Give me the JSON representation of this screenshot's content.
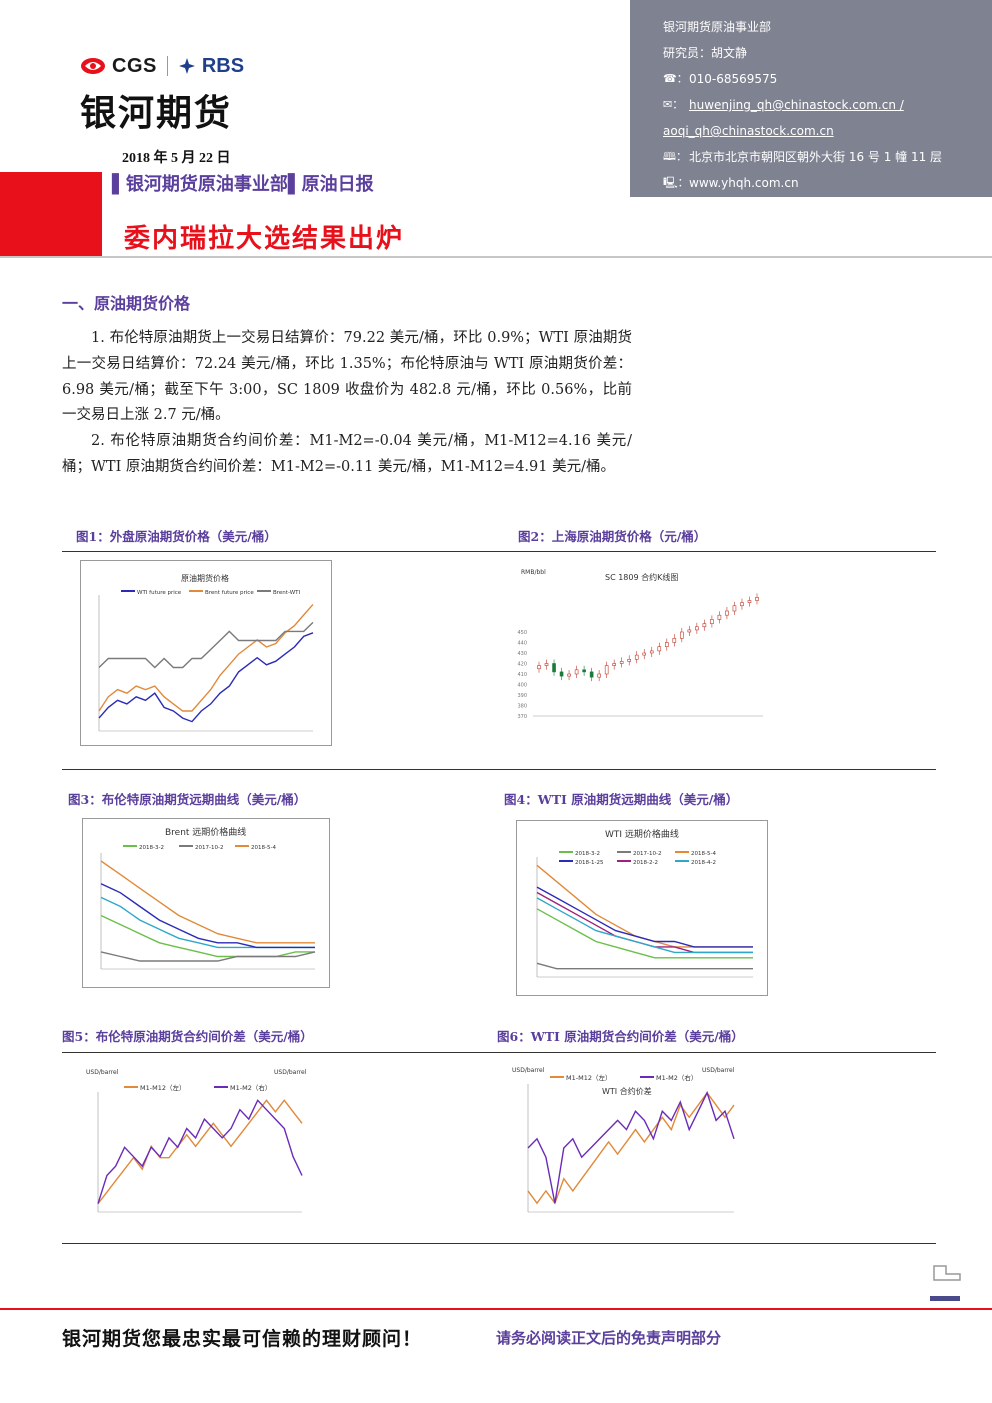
{
  "header": {
    "logo_left": "CGS",
    "logo_right": "RBS",
    "brand": "银河期货",
    "date": "2018 年 5 月 22 日",
    "department": "▌银河期货原油事业部▌原油日报",
    "headline": "委内瑞拉大选结果出炉"
  },
  "contact": {
    "dept": "银河期货原油事业部",
    "researcher": "研究员：胡文静",
    "phone_icon": "☎：",
    "phone": "010-68569575",
    "email_icon": "✉：",
    "email1": "huwenjing_qh@chinastock.com.cn /",
    "email2": "aoqi_qh@chinastock.com.cn",
    "address_icon": "🕮：",
    "address": "北京市北京市朝阳区朝外大街 16 号 1 幢 11 层",
    "web_icon": "🖳：",
    "web": "www.yhqh.com.cn"
  },
  "section": {
    "title": "一、原油期货价格",
    "para1": "1. 布伦特原油期货上一交易日结算价：79.22 美元/桶，环比 0.9%；WTI 原油期货上一交易日结算价：72.24 美元/桶，环比 1.35%；布伦特原油与 WTI 原油期货价差：6.98 美元/桶；截至下午 3:00，SC 1809 收盘价为 482.8 元/桶，环比 0.56%，比前一交易日上涨 2.7 元/桶。",
    "para2": "2. 布伦特原油期货合约间价差：M1-M2=-0.04 美元/桶，M1-M12=4.16 美元/桶；WTI 原油期货合约间价差：M1-M2=-0.11 美元/桶，M1-M12=4.91 美元/桶。"
  },
  "figures": {
    "fig1": "图1：外盘原油期货价格（美元/桶）",
    "fig2": "图2：上海原油期货价格（元/桶）",
    "fig3": "图3：布伦特原油期货远期曲线（美元/桶）",
    "fig4": "图4：WTI 原油期货远期曲线（美元/桶）",
    "fig5": "图5：布伦特原油期货合约间价差（美元/桶）",
    "fig6": "图6：WTI 原油期货合约间价差（美元/桶）"
  },
  "chart_data": [
    {
      "type": "line",
      "title": "原油期货价格",
      "series": [
        {
          "name": "WTI future price",
          "color": "#2b2bb8",
          "values": [
            48,
            51,
            53,
            52,
            54,
            53,
            55,
            51,
            50,
            48,
            47,
            50,
            52,
            55,
            57,
            61,
            63,
            65,
            63,
            64,
            66,
            68,
            71,
            72
          ]
        },
        {
          "name": "Brent future price",
          "color": "#e08a3a",
          "values": [
            50,
            54,
            56,
            55,
            57,
            56,
            57,
            54,
            52,
            50,
            50,
            53,
            56,
            60,
            63,
            66,
            68,
            70,
            68,
            69,
            72,
            74,
            77,
            80
          ]
        },
        {
          "name": "Brent-WTI",
          "color": "#7a7a7a",
          "values": [
            2,
            3,
            3,
            3,
            3,
            3,
            2,
            3,
            2,
            2,
            3,
            3,
            4,
            5,
            6,
            5,
            5,
            5,
            5,
            5,
            6,
            6,
            6,
            7
          ]
        }
      ]
    },
    {
      "type": "candlestick",
      "title": "SC 1809 合约K线图",
      "ylabel": "RMB/bbl",
      "yticks": [
        370,
        380,
        390,
        400,
        410,
        420,
        430,
        440,
        450
      ],
      "closes": [
        418,
        420,
        412,
        408,
        410,
        414,
        412,
        407,
        410,
        418,
        420,
        422,
        424,
        428,
        430,
        432,
        436,
        440,
        444,
        450,
        452,
        455,
        458,
        462,
        466,
        470,
        475,
        478,
        480,
        483
      ]
    },
    {
      "type": "line",
      "title": "Brent 远期价格曲线",
      "series": [
        {
          "name": "2018-3-2",
          "color": "#6abf4b",
          "values": [
            64,
            62,
            60,
            58,
            57,
            56,
            55,
            55,
            55,
            55,
            56,
            56
          ]
        },
        {
          "name": "2017-10-2",
          "color": "#7a7a7a",
          "values": [
            56,
            55,
            54,
            54,
            54,
            54,
            54,
            55,
            55,
            55,
            55,
            56
          ]
        },
        {
          "name": "2018-5-4",
          "color": "#e08a3a",
          "values": [
            76,
            73,
            70,
            67,
            64,
            62,
            60,
            59,
            58,
            58,
            58,
            58
          ]
        },
        {
          "name": "",
          "color": "#2fa8c8",
          "values": [
            68,
            66,
            63,
            61,
            59,
            58,
            57,
            57,
            57,
            57,
            57,
            57
          ]
        },
        {
          "name": "",
          "color": "#2b2bb8",
          "values": [
            71,
            69,
            66,
            63,
            61,
            59,
            58,
            58,
            57,
            57,
            57,
            57
          ]
        }
      ]
    },
    {
      "type": "line",
      "title": "WTI 远期价格曲线",
      "series": [
        {
          "name": "2018-3-2",
          "color": "#6abf4b",
          "values": [
            62,
            60,
            58,
            56,
            55,
            54,
            53,
            53,
            53,
            53,
            53,
            53
          ]
        },
        {
          "name": "2017-10-2",
          "color": "#7a7a7a",
          "values": [
            52,
            51,
            51,
            51,
            51,
            51,
            51,
            51,
            51,
            51,
            51,
            51
          ]
        },
        {
          "name": "2018-5-4",
          "color": "#e08a3a",
          "values": [
            70,
            67,
            64,
            61,
            59,
            57,
            56,
            55,
            55,
            55,
            55,
            55
          ]
        },
        {
          "name": "2018-1-25",
          "color": "#2b2bb8",
          "values": [
            66,
            64,
            62,
            60,
            58,
            57,
            56,
            56,
            55,
            55,
            55,
            55
          ]
        },
        {
          "name": "2018-2-2",
          "color": "#a0207c",
          "values": [
            65,
            63,
            61,
            59,
            57,
            56,
            55,
            55,
            54,
            54,
            54,
            54
          ]
        },
        {
          "name": "2018-4-2",
          "color": "#2fa8c8",
          "values": [
            64,
            62,
            60,
            58,
            57,
            56,
            55,
            54,
            54,
            54,
            54,
            54
          ]
        }
      ]
    },
    {
      "type": "line",
      "title": "",
      "ylabel": "USD/barrel",
      "series": [
        {
          "name": "M1-M12（左）",
          "color": "#e08a3a",
          "values": [
            -3,
            -2,
            -1,
            0,
            1,
            0,
            2,
            1,
            1,
            2,
            3,
            2,
            3,
            4,
            3,
            2,
            3,
            4,
            5,
            6,
            5,
            6,
            5,
            4
          ]
        },
        {
          "name": "M1-M2（右）",
          "color": "#6a2bb8",
          "values": [
            -0.3,
            0,
            0.1,
            0.3,
            0.2,
            0.1,
            0.3,
            0.2,
            0.4,
            0.3,
            0.5,
            0.4,
            0.6,
            0.5,
            0.4,
            0.5,
            0.7,
            0.6,
            0.8,
            0.7,
            0.6,
            0.5,
            0.2,
            0
          ]
        }
      ]
    },
    {
      "type": "line",
      "title": "WTI 合约价差",
      "ylabel": "USD/barrel",
      "series": [
        {
          "name": "M1-M12（左）",
          "color": "#e08a3a",
          "values": [
            -2,
            -3,
            -2,
            -3,
            -1,
            -2,
            -1,
            0,
            1,
            2,
            1,
            2,
            3,
            2,
            3,
            4,
            3,
            5,
            4,
            5,
            6,
            5,
            4,
            5
          ]
        },
        {
          "name": "M1-M2（右）",
          "color": "#6a2bb8",
          "values": [
            0.2,
            0.3,
            0.1,
            -0.4,
            0.2,
            0.3,
            0.1,
            0.2,
            0.3,
            0.4,
            0.5,
            0.4,
            0.6,
            0.5,
            0.3,
            0.6,
            0.5,
            0.7,
            0.4,
            0.6,
            0.8,
            0.5,
            0.6,
            0.3
          ]
        }
      ]
    }
  ],
  "footer": {
    "slogan": "银河期货您最忠实最可信赖的理财顾问！",
    "disclaimer": "请务必阅读正文后的免责声明部分"
  }
}
